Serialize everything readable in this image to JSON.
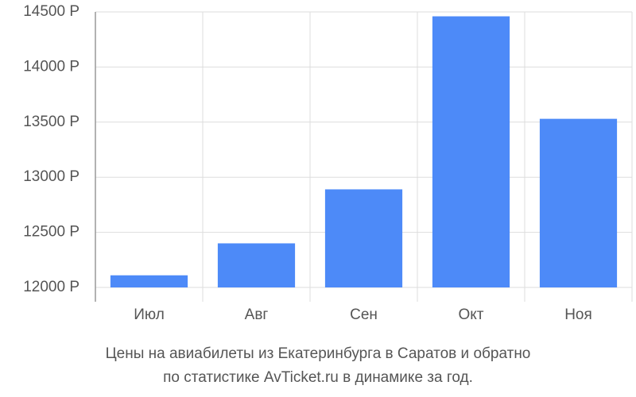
{
  "chart_data": {
    "type": "bar",
    "title": [
      "Цены на авиабилеты из Екатеринбурга в Саратов и обратно",
      "по статистике AvTicket.ru в динамике за год."
    ],
    "categories": [
      "Июл",
      "Авг",
      "Сен",
      "Окт",
      "Ноя"
    ],
    "values": [
      12110,
      12400,
      12890,
      14460,
      13530
    ],
    "color": "#4d8af8",
    "ylim": [
      12000,
      14500
    ],
    "yticks": [
      {
        "value": 12000,
        "label": "12000 Р"
      },
      {
        "value": 12500,
        "label": "12500 Р"
      },
      {
        "value": 13000,
        "label": "13000 Р"
      },
      {
        "value": 13500,
        "label": "13500 Р"
      },
      {
        "value": 14000,
        "label": "14000 Р"
      },
      {
        "value": 14500,
        "label": "14500 Р"
      }
    ],
    "grid": true
  }
}
